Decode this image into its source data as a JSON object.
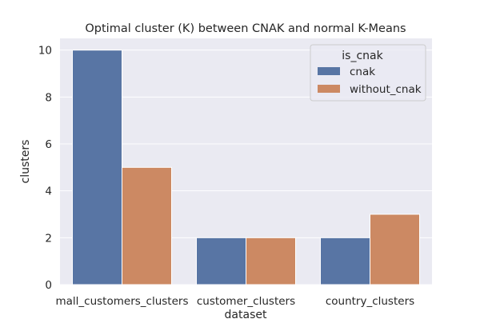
{
  "chart_data": {
    "type": "bar",
    "title": "Optimal cluster (K) between CNAK and normal K-Means",
    "xlabel": "dataset",
    "ylabel": "clusters",
    "categories": [
      "mall_customers_clusters",
      "customer_clusters",
      "country_clusters"
    ],
    "series": [
      {
        "name": "cnak",
        "values": [
          10,
          2,
          2
        ],
        "color": "#5875a4"
      },
      {
        "name": "without_cnak",
        "values": [
          5,
          2,
          3
        ],
        "color": "#cc8963"
      }
    ],
    "ylim": [
      0,
      10.5
    ],
    "yticks": [
      0,
      2,
      4,
      6,
      8,
      10
    ],
    "grid": true,
    "background": "#eaeaf2",
    "legend": {
      "title": "is_cnak",
      "position": "top-right"
    }
  }
}
